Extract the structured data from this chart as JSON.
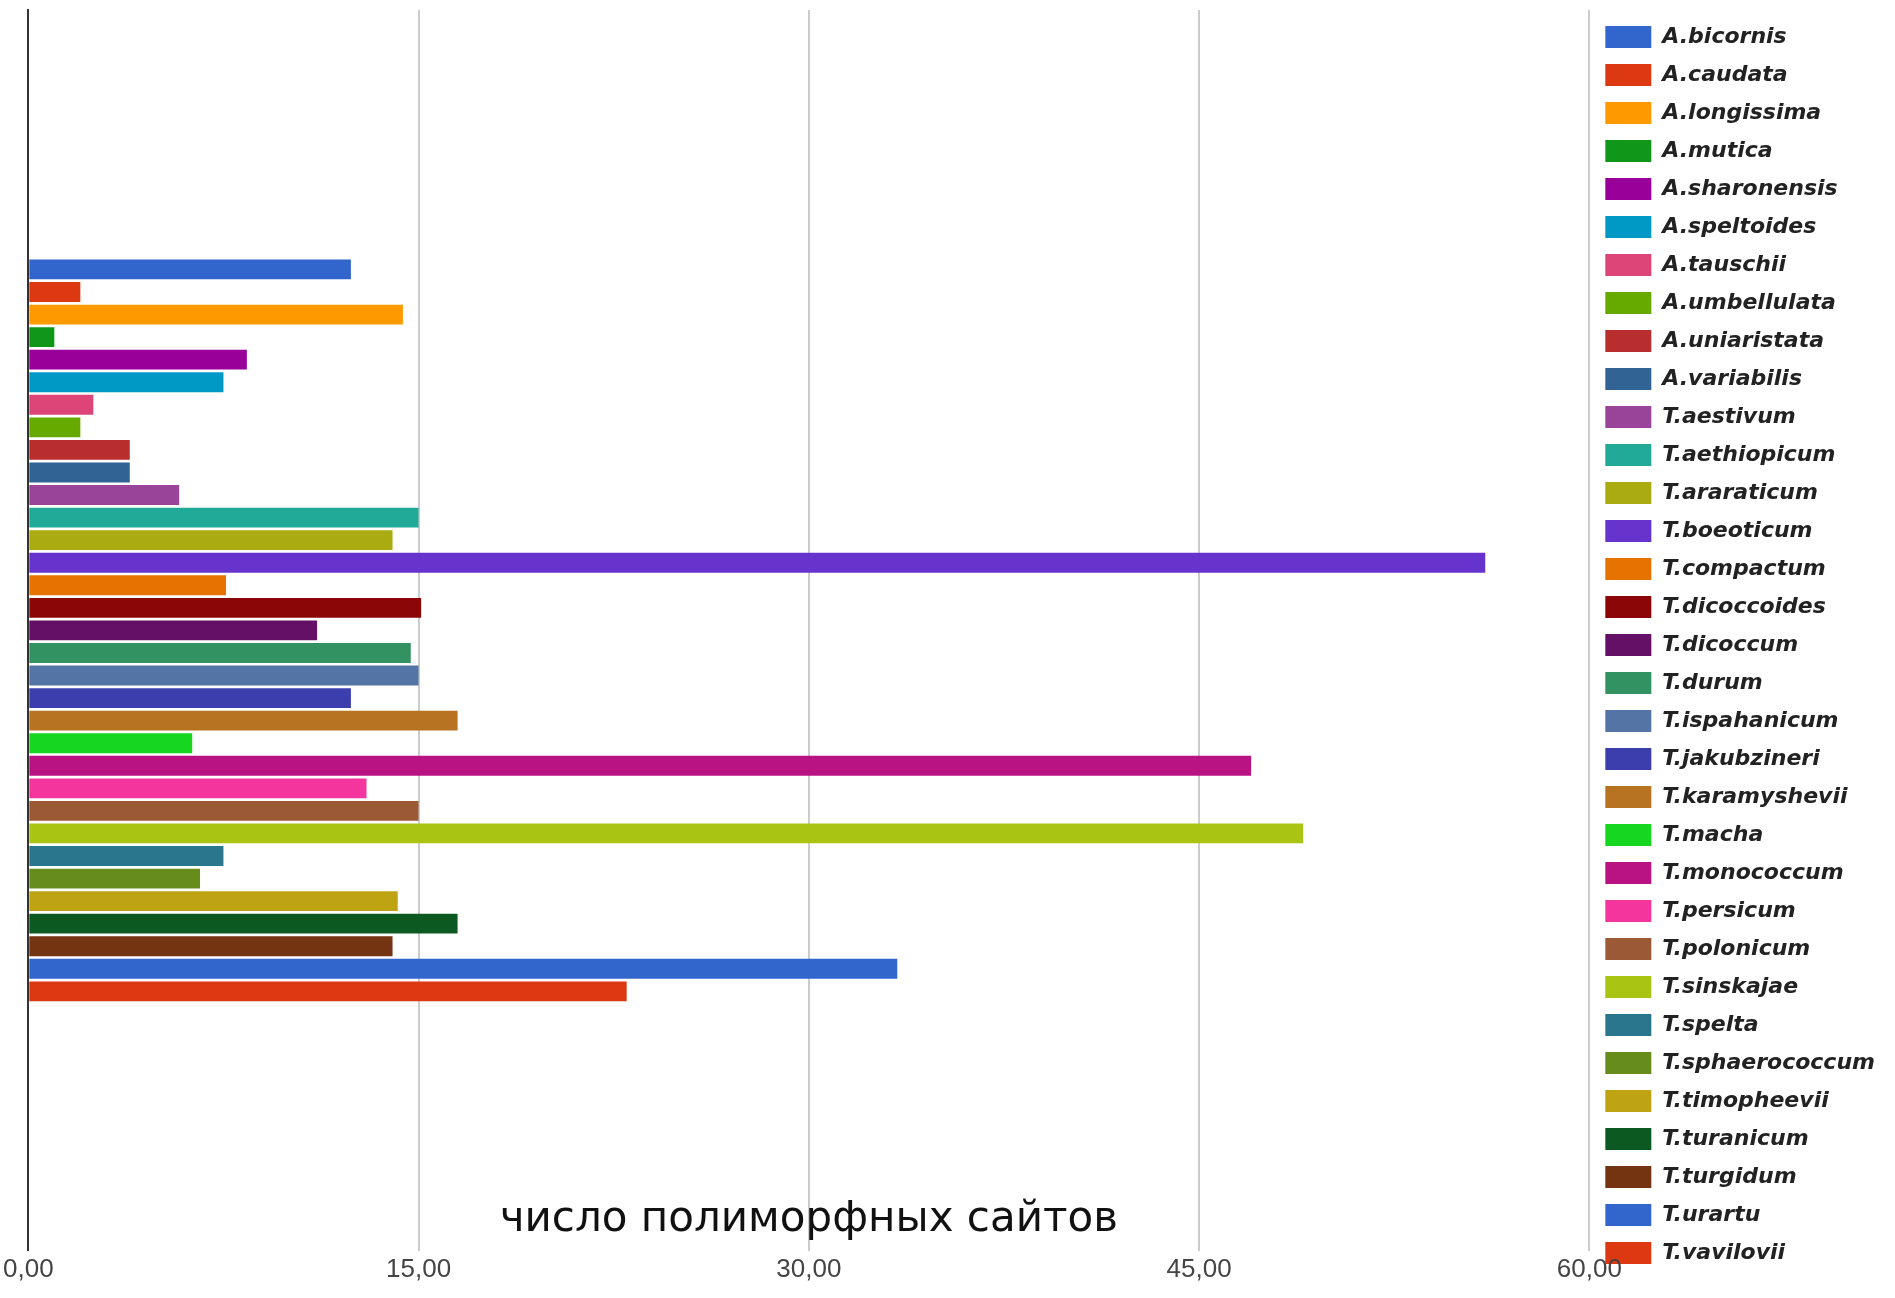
{
  "chart_data": {
    "type": "bar",
    "orientation": "horizontal",
    "xlabel": "число полиморфных сайтов",
    "categories": [
      null
    ],
    "series": [
      {
        "name": "A.bicornis",
        "color": "#3366cc",
        "values": [
          12.4
        ]
      },
      {
        "name": "A.caudata",
        "color": "#dc3912",
        "values": [
          2
        ]
      },
      {
        "name": "A.longissima",
        "color": "#ff9900",
        "values": [
          14.4
        ]
      },
      {
        "name": "A.mutica",
        "color": "#109618",
        "values": [
          1
        ]
      },
      {
        "name": "A.sharonensis",
        "color": "#990099",
        "values": [
          8.4
        ]
      },
      {
        "name": "A.speltoides",
        "color": "#0099c6",
        "values": [
          7.5
        ]
      },
      {
        "name": "A.tauschii",
        "color": "#dd4477",
        "values": [
          2.5
        ]
      },
      {
        "name": "A.umbellulata",
        "color": "#66aa00",
        "values": [
          2
        ]
      },
      {
        "name": "A.uniaristata",
        "color": "#b82e2e",
        "values": [
          3.9
        ]
      },
      {
        "name": "A.variabilis",
        "color": "#316395",
        "values": [
          3.9
        ]
      },
      {
        "name": "T.aestivum",
        "color": "#994499",
        "values": [
          5.8
        ]
      },
      {
        "name": "T.aethiopicum",
        "color": "#22aa99",
        "values": [
          15
        ]
      },
      {
        "name": "T.araraticum",
        "color": "#aaaa11",
        "values": [
          14
        ]
      },
      {
        "name": "T.boeoticum",
        "color": "#6633cc",
        "values": [
          56
        ]
      },
      {
        "name": "T.compactum",
        "color": "#e67300",
        "values": [
          7.6
        ]
      },
      {
        "name": "T.dicoccoides",
        "color": "#8b0707",
        "values": [
          15.1
        ]
      },
      {
        "name": "T.dicoccum",
        "color": "#651067",
        "values": [
          11.1
        ]
      },
      {
        "name": "T.durum",
        "color": "#329262",
        "values": [
          14.7
        ]
      },
      {
        "name": "T.ispahanicum",
        "color": "#5574a6",
        "values": [
          15
        ]
      },
      {
        "name": "T.jakubzineri",
        "color": "#3b3eac",
        "values": [
          12.4
        ]
      },
      {
        "name": "T.karamyshevii",
        "color": "#b77322",
        "values": [
          16.5
        ]
      },
      {
        "name": "T.macha",
        "color": "#16d620",
        "values": [
          6.3
        ]
      },
      {
        "name": "T.monococcum",
        "color": "#b91383",
        "values": [
          47
        ]
      },
      {
        "name": "T.persicum",
        "color": "#f4359e",
        "values": [
          13
        ]
      },
      {
        "name": "T.polonicum",
        "color": "#9c5935",
        "values": [
          15
        ]
      },
      {
        "name": "T.sinskajae",
        "color": "#a9c413",
        "values": [
          49
        ]
      },
      {
        "name": "T.spelta",
        "color": "#2a778d",
        "values": [
          7.5
        ]
      },
      {
        "name": "T.sphaerococcum",
        "color": "#668d1c",
        "values": [
          6.6
        ]
      },
      {
        "name": "T.timopheevii",
        "color": "#bea413",
        "values": [
          14.2
        ]
      },
      {
        "name": "T.turanicum",
        "color": "#0c5922",
        "values": [
          16.5
        ]
      },
      {
        "name": "T.turgidum",
        "color": "#743411",
        "values": [
          14
        ]
      },
      {
        "name": "T.urartu",
        "color": "#3366cc",
        "values": [
          33.4
        ]
      },
      {
        "name": "T.vavilovii",
        "color": "#dc3912",
        "values": [
          23
        ]
      }
    ],
    "xlim": [
      0,
      60
    ],
    "xticks": [
      {
        "value": 0,
        "label": "0,00"
      },
      {
        "value": 15,
        "label": "15,00"
      },
      {
        "value": 30,
        "label": "30,00"
      },
      {
        "value": 45,
        "label": "45,00"
      },
      {
        "value": 60,
        "label": "60,00"
      }
    ],
    "grid": "x",
    "legend": "right"
  }
}
